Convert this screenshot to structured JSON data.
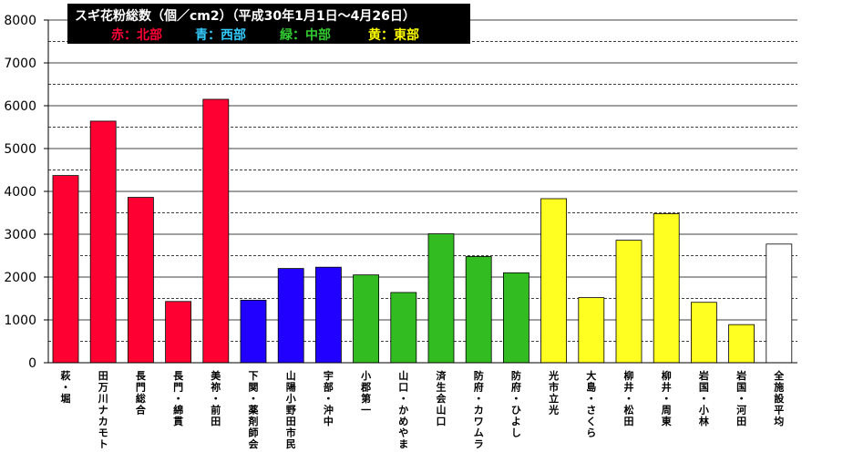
{
  "chart_data": {
    "type": "bar",
    "title": "スギ花粉総数（個／cm2）（平成30年1月1日～4月26日）",
    "legend": [
      {
        "label": "赤：北部",
        "color": "#ff0033"
      },
      {
        "label": "青：西部",
        "color": "#33ccff"
      },
      {
        "label": "緑：中部",
        "color": "#33cc33"
      },
      {
        "label": "黄：東部",
        "color": "#ffff00"
      }
    ],
    "categories": [
      "萩・堀",
      "田万川ナカモト",
      "長門総合",
      "長門・綿貫",
      "美祢・前田",
      "下関・薬剤師会",
      "山陽小野田市民",
      "宇部・沖中",
      "小郡第一",
      "山口・かめやま",
      "済生会山口",
      "防府・カワムラ",
      "防府・ひよし",
      "光市立光",
      "大島・さくら",
      "柳井・松田",
      "柳井・周東",
      "岩国・小林",
      "岩国・河田",
      "全施設平均"
    ],
    "values": [
      4370,
      5640,
      3860,
      1430,
      6150,
      1460,
      2200,
      2230,
      2050,
      1640,
      3010,
      2480,
      2100,
      3830,
      1520,
      2860,
      3480,
      1410,
      890,
      2770
    ],
    "bar_colors": [
      "#ff0033",
      "#ff0033",
      "#ff0033",
      "#ff0033",
      "#ff0033",
      "#2200ff",
      "#2200ff",
      "#2200ff",
      "#33bb22",
      "#33bb22",
      "#33bb22",
      "#33bb22",
      "#33bb22",
      "#ffff22",
      "#ffff22",
      "#ffff22",
      "#ffff22",
      "#ffff22",
      "#ffff22",
      "#ffffff"
    ],
    "yticks": [
      "0",
      "1000",
      "2000",
      "3000",
      "4000",
      "5000",
      "6000",
      "7000",
      "8000"
    ],
    "ylim": [
      0,
      8000
    ],
    "grid": "solid every 1000, dashed every 500",
    "legend_position": "top-left"
  }
}
